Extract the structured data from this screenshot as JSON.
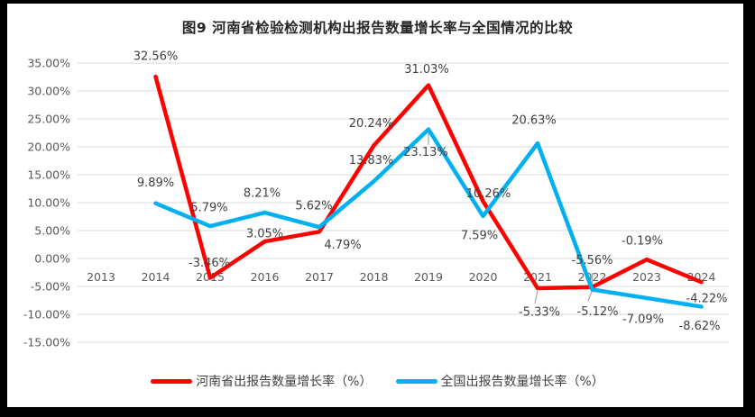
{
  "chart_data": {
    "type": "line",
    "title": "图9  河南省检验检测机构出报告数量增长率与全国情况的比较",
    "categories": [
      "2013",
      "2014",
      "2015",
      "2016",
      "2017",
      "2018",
      "2019",
      "2020",
      "2021",
      "2022",
      "2023",
      "2024"
    ],
    "series": [
      {
        "name": "河南省出报告数量增长率（%）",
        "color": "#FF0000",
        "values": [
          null,
          32.56,
          -3.46,
          3.05,
          4.79,
          20.24,
          31.03,
          10.26,
          -5.33,
          -5.12,
          -0.19,
          -4.22
        ]
      },
      {
        "name": "全国出报告数量增长率（%）",
        "color": "#00B0F0",
        "values": [
          null,
          9.89,
          5.79,
          8.21,
          5.62,
          13.83,
          23.13,
          7.59,
          20.63,
          -5.56,
          -7.09,
          -8.62
        ]
      }
    ],
    "ylim": [
      -15,
      35
    ],
    "y_tick_step": 5,
    "y_ticks": [
      "35.00%",
      "30.00%",
      "25.00%",
      "20.00%",
      "15.00%",
      "10.00%",
      "5.00%",
      "0.00%",
      "-5.00%",
      "-10.00%",
      "-15.00%"
    ],
    "grid": true,
    "data_labels": true,
    "legend_position": "bottom"
  },
  "colors": {
    "grid": "#D9D9D9",
    "axis_text": "#595959",
    "data_label_text": "#404040",
    "title_text": "#262626",
    "leader_line": "#A6A6A6",
    "background": "#FFFFFF",
    "frame": "#000000"
  }
}
